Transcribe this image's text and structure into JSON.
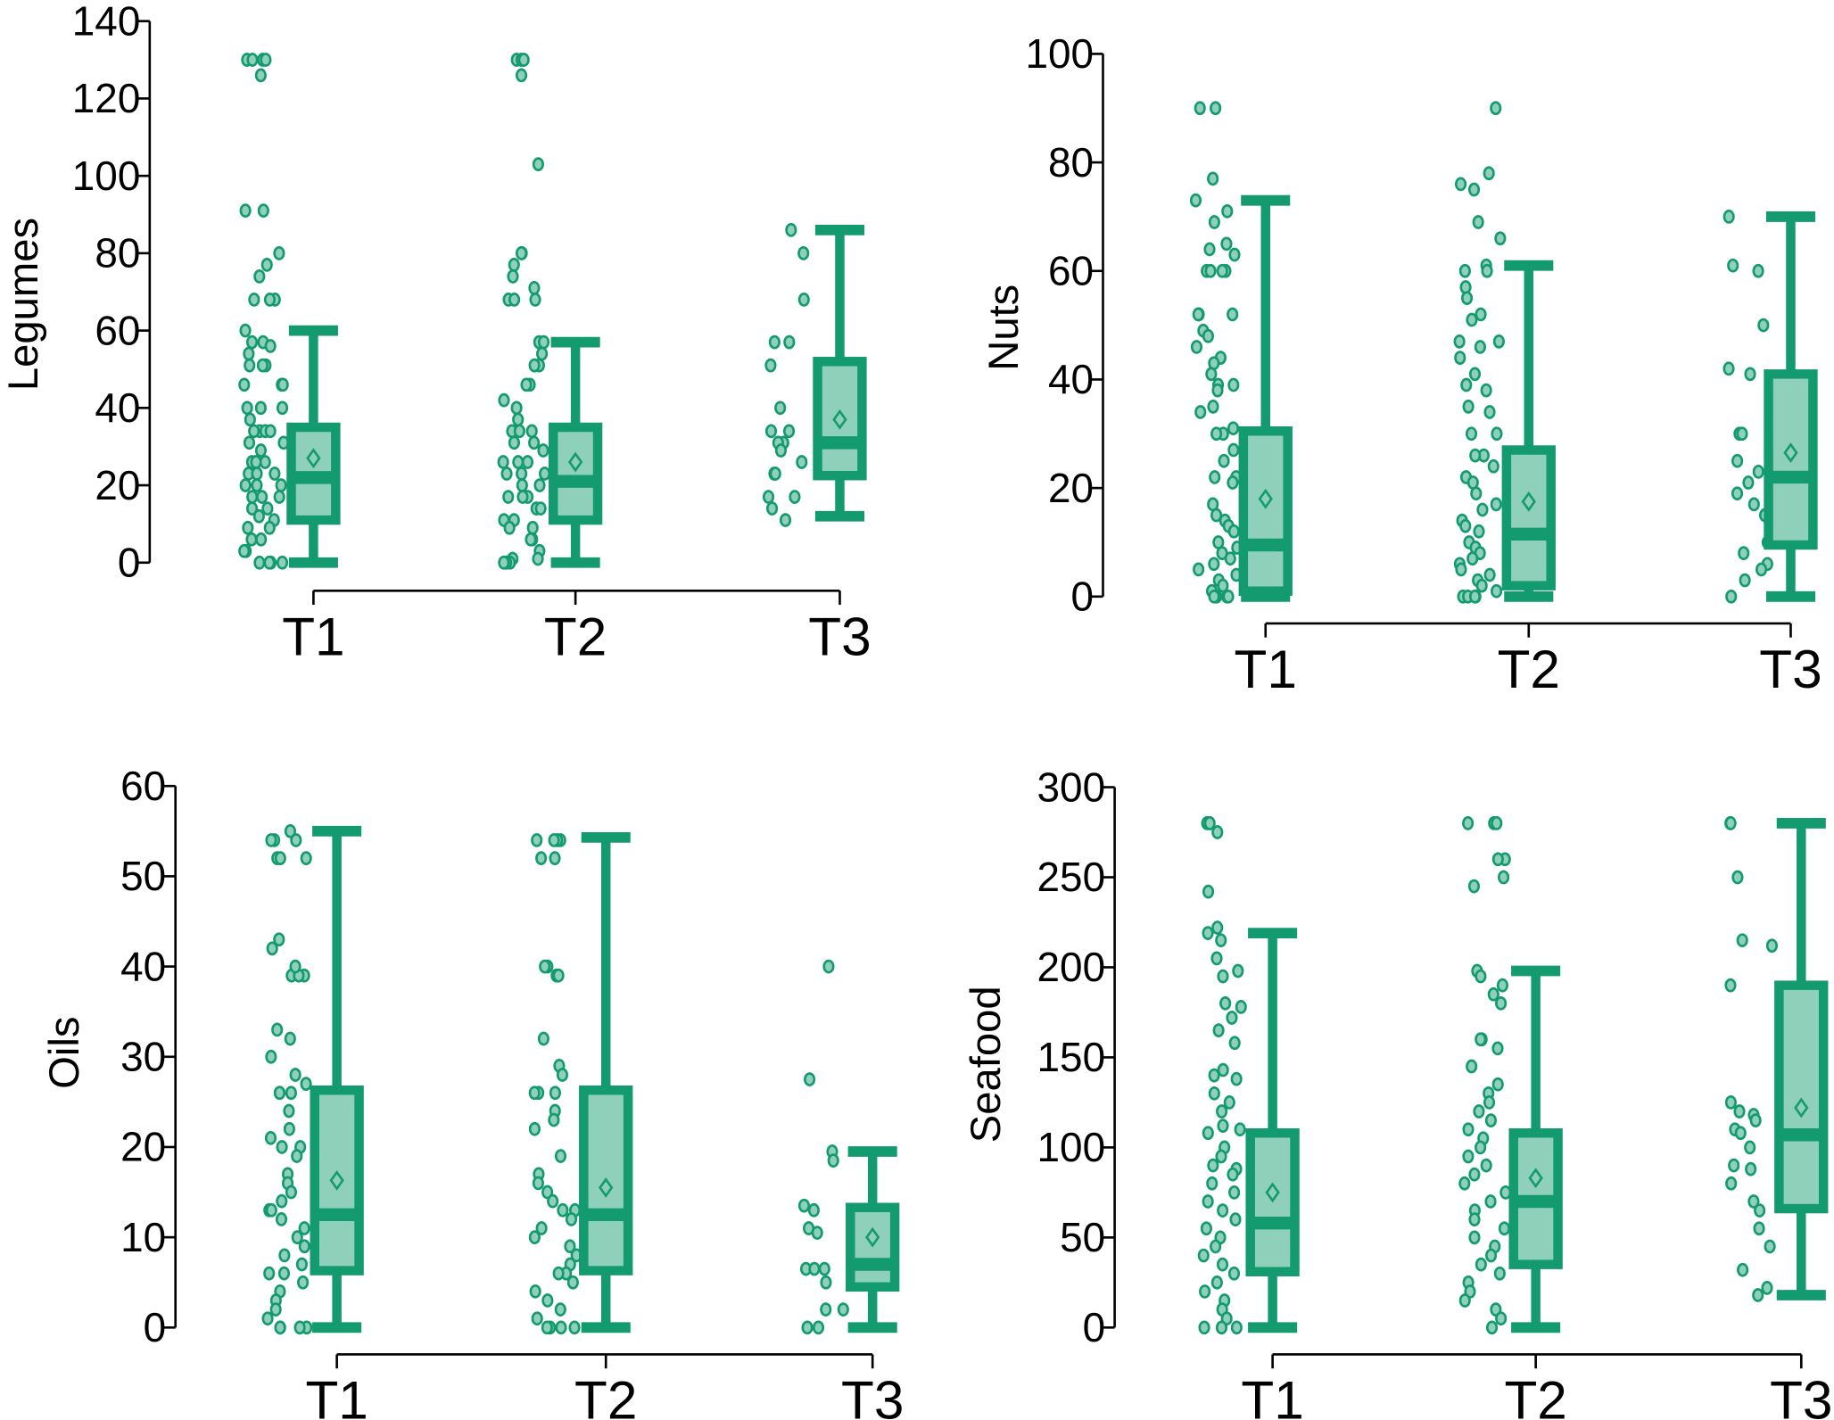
{
  "colors": {
    "box_stroke": "#139a6e",
    "box_fill": "#8fd0bb",
    "axis": "#000000"
  },
  "chart_data": [
    {
      "type": "box",
      "ylabel": "Legumes",
      "ylim": [
        0,
        140
      ],
      "yticks": [
        0,
        20,
        40,
        60,
        80,
        100,
        120,
        140
      ],
      "categories": [
        "T1",
        "T2",
        "T3"
      ],
      "groups": [
        {
          "category": "T1",
          "whisker_low": 0,
          "q1": 11,
          "median": 22,
          "q3": 35,
          "whisker_high": 60,
          "mean": 27,
          "points": [
            130,
            130,
            130,
            130,
            126,
            91,
            91,
            80,
            77,
            74,
            68,
            68,
            68,
            60,
            57,
            57,
            56,
            54,
            51,
            51,
            51,
            46,
            46,
            46,
            40,
            40,
            40,
            37,
            34,
            34,
            34,
            34,
            31,
            31,
            29,
            26,
            26,
            26,
            23,
            23,
            23,
            20,
            20,
            20,
            17,
            17,
            17,
            14,
            14,
            12,
            11,
            9,
            9,
            6,
            6,
            3,
            3,
            0,
            0,
            0,
            0
          ]
        },
        {
          "category": "T2",
          "whisker_low": 0,
          "q1": 11,
          "median": 21,
          "q3": 35,
          "whisker_high": 57,
          "mean": 26,
          "points": [
            130,
            130,
            130,
            126,
            103,
            80,
            80,
            77,
            74,
            71,
            68,
            68,
            68,
            57,
            57,
            54,
            51,
            51,
            46,
            46,
            42,
            40,
            37,
            34,
            34,
            34,
            31,
            31,
            29,
            26,
            26,
            26,
            23,
            23,
            23,
            20,
            20,
            17,
            17,
            17,
            14,
            14,
            11,
            11,
            9,
            9,
            6,
            6,
            3,
            1,
            1,
            0,
            0,
            0,
            0
          ]
        },
        {
          "category": "T3",
          "whisker_low": 12,
          "q1": 22.5,
          "median": 31,
          "q3": 52,
          "whisker_high": 86,
          "mean": 37,
          "points": [
            86,
            80,
            68,
            57,
            57,
            51,
            40,
            34,
            34,
            31,
            31,
            29,
            26,
            23,
            23,
            17,
            17,
            14,
            11
          ]
        }
      ]
    },
    {
      "type": "box",
      "ylabel": "Nuts",
      "ylim": [
        0,
        100
      ],
      "yticks": [
        0,
        20,
        40,
        60,
        80,
        100
      ],
      "categories": [
        "T1",
        "T2",
        "T3"
      ],
      "groups": [
        {
          "category": "T1",
          "whisker_low": 0,
          "q1": 1,
          "median": 9.5,
          "q3": 30.5,
          "whisker_high": 73,
          "mean": 18,
          "points": [
            90,
            90,
            77,
            73,
            71,
            69,
            65,
            64,
            63,
            60,
            60,
            60,
            60,
            52,
            52,
            52,
            52,
            49,
            48,
            46,
            44,
            43,
            41,
            39,
            39,
            38,
            35,
            34,
            31,
            30,
            30,
            27,
            25,
            22,
            22,
            21,
            17,
            15,
            14,
            13,
            12,
            10,
            9,
            8,
            7,
            6,
            5,
            4,
            3,
            2,
            1,
            0,
            0,
            0,
            0
          ]
        },
        {
          "category": "T2",
          "whisker_low": 0,
          "q1": 2,
          "median": 11.5,
          "q3": 27,
          "whisker_high": 61,
          "mean": 17.5,
          "points": [
            90,
            78,
            76,
            75,
            69,
            66,
            61,
            60,
            60,
            57,
            55,
            52,
            51,
            47,
            47,
            46,
            44,
            41,
            39,
            38,
            35,
            34,
            30,
            30,
            26,
            26,
            24,
            22,
            21,
            19,
            17,
            16,
            14,
            13,
            12,
            10,
            9,
            8,
            7,
            6,
            5,
            4,
            3,
            2,
            1,
            0,
            0,
            0,
            0
          ]
        },
        {
          "category": "T3",
          "whisker_low": 0,
          "q1": 9.5,
          "median": 22,
          "q3": 41,
          "whisker_high": 70,
          "mean": 26.5,
          "points": [
            70,
            61,
            60,
            50,
            42,
            41,
            30,
            30,
            25,
            23,
            21,
            19,
            17,
            15,
            10,
            8,
            6,
            5,
            3,
            0
          ]
        }
      ]
    },
    {
      "type": "box",
      "ylabel": "Oils",
      "ylim": [
        0,
        60
      ],
      "yticks": [
        0,
        10,
        20,
        30,
        40,
        50,
        60
      ],
      "categories": [
        "T1",
        "T2",
        "T3"
      ],
      "groups": [
        {
          "category": "T1",
          "whisker_low": 0,
          "q1": 6.3,
          "median": 12.5,
          "q3": 26.3,
          "whisker_high": 55,
          "mean": 16.3,
          "points": [
            54,
            54,
            54,
            55,
            52,
            52,
            52,
            43,
            42,
            39,
            39,
            39,
            40,
            33,
            32,
            30,
            28,
            27,
            26,
            26,
            26,
            24,
            22,
            21,
            20,
            20,
            19,
            17,
            16,
            15,
            14,
            13,
            13,
            12,
            11,
            10,
            9,
            8,
            7,
            6,
            6,
            5,
            4,
            3,
            2,
            1,
            0,
            0,
            0,
            0
          ]
        },
        {
          "category": "T2",
          "whisker_low": 0,
          "q1": 6.3,
          "median": 12.5,
          "q3": 26.3,
          "whisker_high": 54.3,
          "mean": 15.5,
          "points": [
            54,
            54,
            54,
            54,
            52,
            52,
            40,
            40,
            39,
            39,
            32,
            29,
            28,
            26,
            26,
            26,
            24,
            23,
            22,
            19,
            17,
            16,
            15,
            14,
            13,
            13,
            12,
            11,
            10,
            9,
            8,
            7,
            6,
            6,
            5,
            4,
            3,
            2,
            1,
            0,
            0,
            0,
            0
          ]
        },
        {
          "category": "T3",
          "whisker_low": 0,
          "q1": 4.5,
          "median": 7,
          "q3": 13.3,
          "whisker_high": 19.5,
          "mean": 10,
          "points": [
            40,
            27.5,
            19.5,
            18.5,
            13.5,
            13,
            11,
            10.5,
            6.5,
            6.5,
            6.5,
            5,
            2,
            2,
            0,
            0
          ]
        }
      ]
    },
    {
      "type": "box",
      "ylabel": "Seafood",
      "ylim": [
        0,
        300
      ],
      "yticks": [
        0,
        50,
        100,
        150,
        200,
        250,
        300
      ],
      "categories": [
        "T1",
        "T2",
        "T3"
      ],
      "groups": [
        {
          "category": "T1",
          "whisker_low": 0,
          "q1": 31,
          "median": 58,
          "q3": 108,
          "whisker_high": 219,
          "mean": 75,
          "points": [
            280,
            280,
            280,
            275,
            242,
            222,
            219,
            215,
            205,
            198,
            195,
            180,
            178,
            172,
            165,
            158,
            143,
            140,
            138,
            130,
            125,
            120,
            112,
            110,
            108,
            100,
            95,
            90,
            88,
            85,
            80,
            75,
            70,
            65,
            60,
            55,
            50,
            45,
            40,
            35,
            30,
            25,
            20,
            15,
            10,
            5,
            0,
            0,
            0
          ]
        },
        {
          "category": "T2",
          "whisker_low": 0,
          "q1": 35,
          "median": 70,
          "q3": 108,
          "whisker_high": 198,
          "mean": 83,
          "points": [
            280,
            280,
            280,
            260,
            260,
            250,
            245,
            198,
            195,
            190,
            185,
            180,
            160,
            160,
            155,
            145,
            135,
            130,
            125,
            120,
            115,
            110,
            105,
            100,
            95,
            90,
            85,
            80,
            75,
            70,
            65,
            60,
            55,
            50,
            45,
            40,
            35,
            30,
            25,
            20,
            15,
            10,
            5,
            0
          ]
        },
        {
          "category": "T3",
          "whisker_low": 18,
          "q1": 66,
          "median": 107,
          "q3": 190,
          "whisker_high": 280,
          "mean": 122,
          "points": [
            280,
            280,
            250,
            215,
            212,
            190,
            125,
            120,
            118,
            115,
            110,
            108,
            100,
            90,
            88,
            80,
            70,
            65,
            55,
            45,
            32,
            22,
            18
          ]
        }
      ]
    }
  ]
}
